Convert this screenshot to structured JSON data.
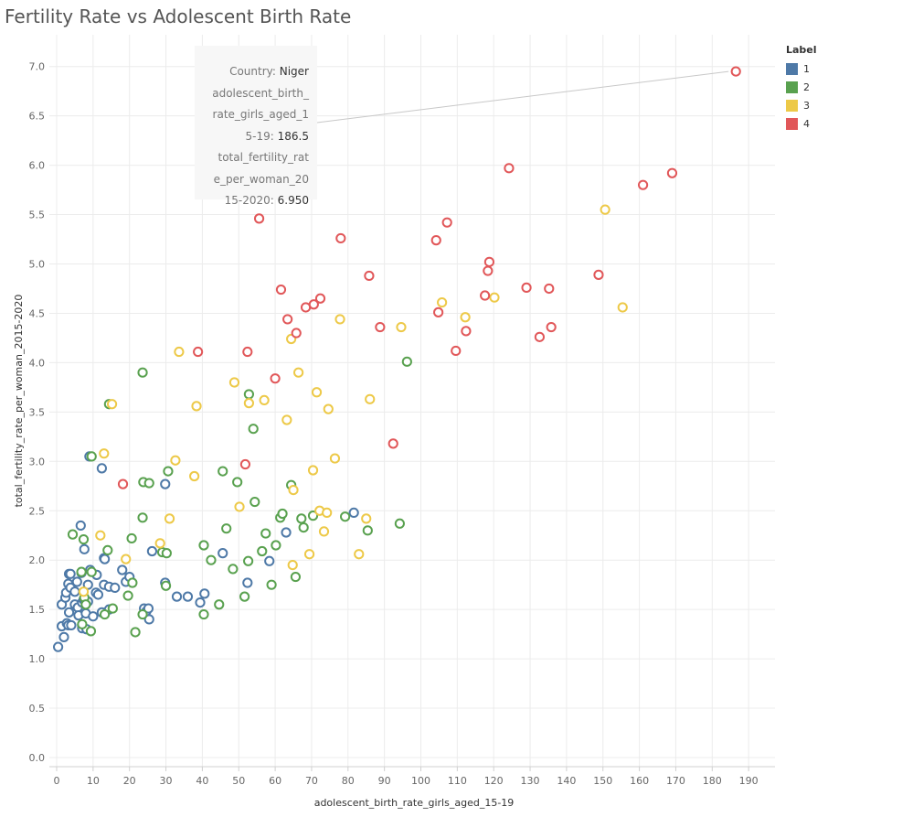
{
  "title": "Fertility Rate vs Adolescent Birth Rate",
  "colors": {
    "1": "#4e79a7",
    "2": "#59a14f",
    "3": "#edc948",
    "4": "#e15759",
    "grid": "#ececec",
    "axis": "#d0d0d0"
  },
  "legend": {
    "title": "Label",
    "items": [
      {
        "label": "1",
        "color": "#4e79a7"
      },
      {
        "label": "2",
        "color": "#59a14f"
      },
      {
        "label": "3",
        "color": "#edc948"
      },
      {
        "label": "4",
        "color": "#e15759"
      }
    ]
  },
  "tooltip": {
    "country_label": "Country:",
    "country_value": "Niger",
    "x_label_lines": [
      "adolescent_birth_",
      "rate_girls_aged_1",
      "5-19:"
    ],
    "x_value": "186.5",
    "y_label_lines": [
      "total_fertility_rat",
      "e_per_woman_20",
      "15-2020:"
    ],
    "y_value": "6.950"
  },
  "chart_data": {
    "type": "scatter",
    "title": "Fertility Rate vs Adolescent Birth Rate",
    "xlabel": "adolescent_birth_rate_girls_aged_15-19",
    "ylabel": "total_fertility_rate_per_woman_2015-2020",
    "xlim": [
      0,
      195
    ],
    "ylim": [
      0,
      7.3
    ],
    "x_ticks": [
      0,
      10,
      20,
      30,
      40,
      50,
      60,
      70,
      80,
      90,
      100,
      110,
      120,
      130,
      140,
      150,
      160,
      170,
      180,
      190
    ],
    "y_ticks": [
      0.0,
      0.5,
      1.0,
      1.5,
      2.0,
      2.5,
      3.0,
      3.5,
      4.0,
      4.5,
      5.0,
      5.5,
      6.0,
      6.5,
      7.0
    ],
    "grid": true,
    "legend_position": "top-right",
    "series": [
      {
        "name": "1",
        "points": [
          [
            0.4,
            1.12
          ],
          [
            1.4,
            1.33
          ],
          [
            1.4,
            1.55
          ],
          [
            2,
            1.22
          ],
          [
            2.4,
            1.62
          ],
          [
            2.6,
            1.67
          ],
          [
            2.8,
            1.36
          ],
          [
            3.2,
            1.76
          ],
          [
            3.2,
            1.34
          ],
          [
            3.4,
            1.86
          ],
          [
            3.4,
            1.47
          ],
          [
            3.8,
            1.72
          ],
          [
            3.8,
            1.86
          ],
          [
            4,
            1.34
          ],
          [
            5,
            1.68
          ],
          [
            5,
            1.55
          ],
          [
            5.6,
            1.78
          ],
          [
            5.8,
            1.52
          ],
          [
            6,
            1.44
          ],
          [
            6.6,
            2.35
          ],
          [
            6.8,
            1.87
          ],
          [
            7,
            1.57
          ],
          [
            7,
            1.34
          ],
          [
            7,
            1.31
          ],
          [
            7.4,
            1.6
          ],
          [
            7.6,
            2.11
          ],
          [
            7.6,
            1.6
          ],
          [
            8,
            1.46
          ],
          [
            8.2,
            1.3
          ],
          [
            8.6,
            1.75
          ],
          [
            8.6,
            1.58
          ],
          [
            9,
            3.05
          ],
          [
            9.2,
            1.9
          ],
          [
            10,
            1.43
          ],
          [
            10.8,
            1.67
          ],
          [
            11,
            1.85
          ],
          [
            11.4,
            1.65
          ],
          [
            12.4,
            1.47
          ],
          [
            12.4,
            2.93
          ],
          [
            13,
            1.75
          ],
          [
            13,
            2.02
          ],
          [
            13.2,
            2.01
          ],
          [
            14.4,
            1.73
          ],
          [
            14.4,
            1.5
          ],
          [
            16,
            1.72
          ],
          [
            18,
            1.9
          ],
          [
            19,
            1.78
          ],
          [
            20,
            1.83
          ],
          [
            24,
            1.51
          ],
          [
            24.6,
            1.48
          ],
          [
            25.2,
            1.51
          ],
          [
            25.4,
            1.4
          ],
          [
            26.2,
            2.09
          ],
          [
            29.8,
            2.77
          ],
          [
            29.8,
            1.77
          ],
          [
            33,
            1.63
          ],
          [
            36,
            1.63
          ],
          [
            39.4,
            1.57
          ],
          [
            40.6,
            1.66
          ],
          [
            45.6,
            2.07
          ],
          [
            52.4,
            1.77
          ],
          [
            58.4,
            1.99
          ],
          [
            63,
            2.28
          ],
          [
            81.6,
            2.48
          ]
        ]
      },
      {
        "name": "2",
        "points": [
          [
            4.4,
            2.26
          ],
          [
            6.8,
            1.88
          ],
          [
            7,
            1.35
          ],
          [
            7.4,
            2.21
          ],
          [
            7.6,
            1.62
          ],
          [
            8,
            1.55
          ],
          [
            9.4,
            1.28
          ],
          [
            9.6,
            1.88
          ],
          [
            9.6,
            3.05
          ],
          [
            13.2,
            1.45
          ],
          [
            14,
            2.1
          ],
          [
            14.4,
            3.58
          ],
          [
            15.4,
            1.51
          ],
          [
            19.6,
            1.64
          ],
          [
            20.6,
            2.22
          ],
          [
            20.8,
            1.77
          ],
          [
            21.6,
            1.27
          ],
          [
            23.6,
            1.45
          ],
          [
            23.6,
            2.43
          ],
          [
            23.6,
            3.9
          ],
          [
            23.8,
            2.79
          ],
          [
            25.4,
            2.78
          ],
          [
            29,
            2.08
          ],
          [
            30,
            1.74
          ],
          [
            30.2,
            2.07
          ],
          [
            30.6,
            2.9
          ],
          [
            40.4,
            2.15
          ],
          [
            40.4,
            1.45
          ],
          [
            42.4,
            2
          ],
          [
            44.6,
            1.55
          ],
          [
            45.6,
            2.9
          ],
          [
            46.6,
            2.32
          ],
          [
            48.4,
            1.91
          ],
          [
            49.6,
            2.79
          ],
          [
            51.6,
            1.63
          ],
          [
            52.6,
            1.99
          ],
          [
            52.8,
            3.68
          ],
          [
            54,
            3.33
          ],
          [
            54.4,
            2.59
          ],
          [
            56.4,
            2.09
          ],
          [
            57.4,
            2.27
          ],
          [
            59,
            1.75
          ],
          [
            60.2,
            2.15
          ],
          [
            61.4,
            2.43
          ],
          [
            62,
            2.47
          ],
          [
            64.4,
            2.76
          ],
          [
            65.6,
            1.83
          ],
          [
            67.2,
            2.42
          ],
          [
            67.8,
            2.33
          ],
          [
            70.4,
            2.45
          ],
          [
            79.2,
            2.44
          ],
          [
            85.4,
            2.3
          ],
          [
            94.2,
            2.37
          ],
          [
            96.2,
            4.01
          ]
        ]
      },
      {
        "name": "3",
        "points": [
          [
            7.4,
            1.68
          ],
          [
            12,
            2.25
          ],
          [
            13,
            3.08
          ],
          [
            15.2,
            3.58
          ],
          [
            19,
            2.01
          ],
          [
            28.4,
            2.17
          ],
          [
            31,
            2.42
          ],
          [
            32.6,
            3.01
          ],
          [
            33.6,
            4.11
          ],
          [
            37.8,
            2.85
          ],
          [
            38.4,
            3.56
          ],
          [
            48.8,
            3.8
          ],
          [
            50.2,
            2.54
          ],
          [
            52.8,
            3.59
          ],
          [
            57,
            3.62
          ],
          [
            63.2,
            3.42
          ],
          [
            64.4,
            4.24
          ],
          [
            64.8,
            1.95
          ],
          [
            65,
            2.71
          ],
          [
            66.4,
            3.9
          ],
          [
            69.4,
            2.06
          ],
          [
            70.4,
            2.91
          ],
          [
            71.4,
            3.7
          ],
          [
            72.2,
            2.5
          ],
          [
            73.4,
            2.29
          ],
          [
            74.2,
            2.48
          ],
          [
            74.6,
            3.53
          ],
          [
            76.4,
            3.03
          ],
          [
            77.8,
            4.44
          ],
          [
            83,
            2.06
          ],
          [
            85,
            2.42
          ],
          [
            86,
            3.63
          ],
          [
            94.6,
            4.36
          ],
          [
            105.8,
            4.61
          ],
          [
            112.2,
            4.46
          ],
          [
            120.2,
            4.66
          ],
          [
            150.6,
            5.55
          ],
          [
            155.4,
            4.56
          ]
        ]
      },
      {
        "name": "4",
        "points": [
          [
            18.2,
            2.77
          ],
          [
            38.8,
            4.11
          ],
          [
            51.8,
            2.97
          ],
          [
            52.4,
            4.11
          ],
          [
            55.6,
            5.46
          ],
          [
            60,
            3.84
          ],
          [
            61.6,
            4.74
          ],
          [
            63.4,
            4.44
          ],
          [
            65.8,
            4.3
          ],
          [
            68.4,
            4.56
          ],
          [
            70.6,
            4.59
          ],
          [
            72.4,
            4.65
          ],
          [
            78,
            5.26
          ],
          [
            85.8,
            4.88
          ],
          [
            88.8,
            4.36
          ],
          [
            92.4,
            3.18
          ],
          [
            104.2,
            5.24
          ],
          [
            104.8,
            4.51
          ],
          [
            107.2,
            5.42
          ],
          [
            109.6,
            4.12
          ],
          [
            112.4,
            4.32
          ],
          [
            117.6,
            4.68
          ],
          [
            118.4,
            4.93
          ],
          [
            118.8,
            5.02
          ],
          [
            124.2,
            5.97
          ],
          [
            129,
            4.76
          ],
          [
            132.6,
            4.26
          ],
          [
            135.2,
            4.75
          ],
          [
            135.8,
            4.36
          ],
          [
            148.8,
            4.89
          ],
          [
            161,
            5.8
          ],
          [
            169,
            5.92
          ],
          [
            186.5,
            6.95
          ]
        ]
      }
    ]
  }
}
